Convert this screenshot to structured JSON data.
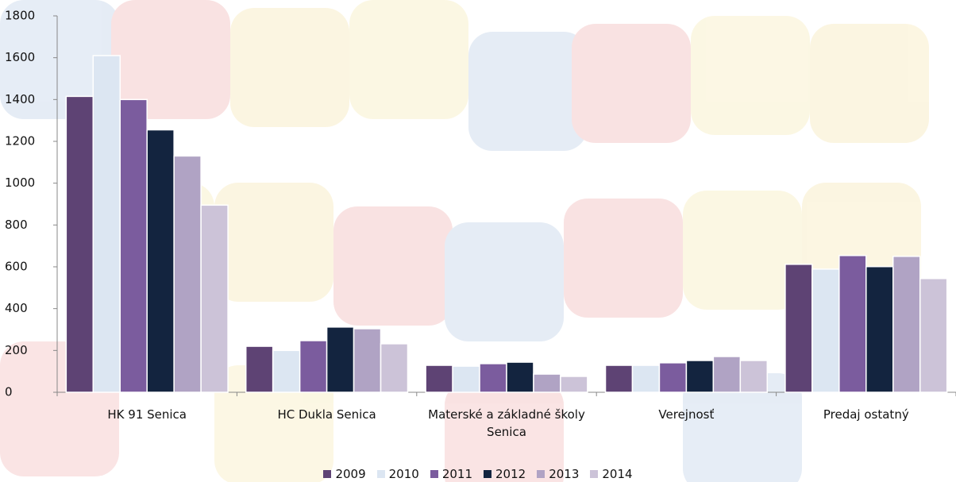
{
  "chart_data": {
    "type": "bar",
    "categories": [
      "HK 91 Senica",
      "HC Dukla Senica",
      "Materské a základné školy Senica",
      "Verejnosť",
      "Predaj ostatný"
    ],
    "series": [
      {
        "name": "2009",
        "color": "#5e4374",
        "values": [
          1415,
          220,
          129,
          129,
          612
        ]
      },
      {
        "name": "2010",
        "color": "#dce6f2",
        "values": [
          1610,
          200,
          125,
          129,
          589
        ]
      },
      {
        "name": "2011",
        "color": "#7b5c9e",
        "values": [
          1400,
          247,
          137,
          141,
          654
        ]
      },
      {
        "name": "2012",
        "color": "#13243f",
        "values": [
          1255,
          312,
          144,
          152,
          601
        ]
      },
      {
        "name": "2013",
        "color": "#b0a3c4",
        "values": [
          1130,
          304,
          87,
          171,
          650
        ]
      },
      {
        "name": "2014",
        "color": "#ccc3d8",
        "values": [
          895,
          232,
          76,
          152,
          544
        ]
      }
    ],
    "ylim": [
      0,
      1800
    ],
    "yticks": [
      0,
      200,
      400,
      600,
      800,
      1000,
      1200,
      1400,
      1600,
      1800
    ],
    "grid": false,
    "legend": "bottom"
  }
}
